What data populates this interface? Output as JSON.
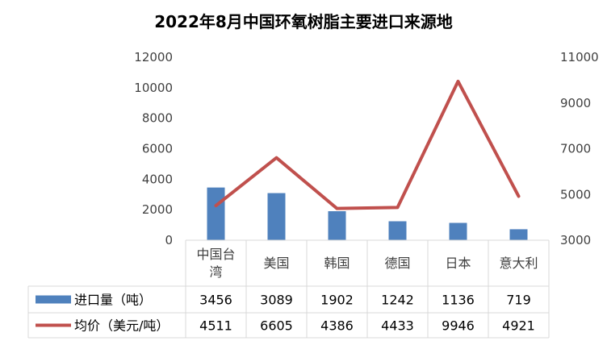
{
  "chart_data": {
    "type": "bar+line",
    "title": "2022年8月中国环氧树脂主要进口来源地",
    "categories": [
      "中国台湾",
      "美国",
      "韩国",
      "德国",
      "日本",
      "意大利"
    ],
    "series": [
      {
        "name": "进口量（吨）",
        "type": "bar",
        "axis": "left",
        "color": "#4F81BD",
        "values": [
          3456,
          3089,
          1902,
          1242,
          1136,
          719
        ]
      },
      {
        "name": "均价（美元/吨）",
        "type": "line",
        "axis": "right",
        "color": "#C0504D",
        "values": [
          4511,
          6605,
          4386,
          4433,
          9946,
          4921
        ]
      }
    ],
    "y_left": {
      "min": 0,
      "max": 12000,
      "ticks": [
        0,
        2000,
        4000,
        6000,
        8000,
        10000,
        12000
      ]
    },
    "y_right": {
      "min": 3000,
      "max": 11000,
      "ticks": [
        3000,
        5000,
        7000,
        9000,
        11000
      ]
    },
    "grid": false,
    "legend": "data-table"
  }
}
